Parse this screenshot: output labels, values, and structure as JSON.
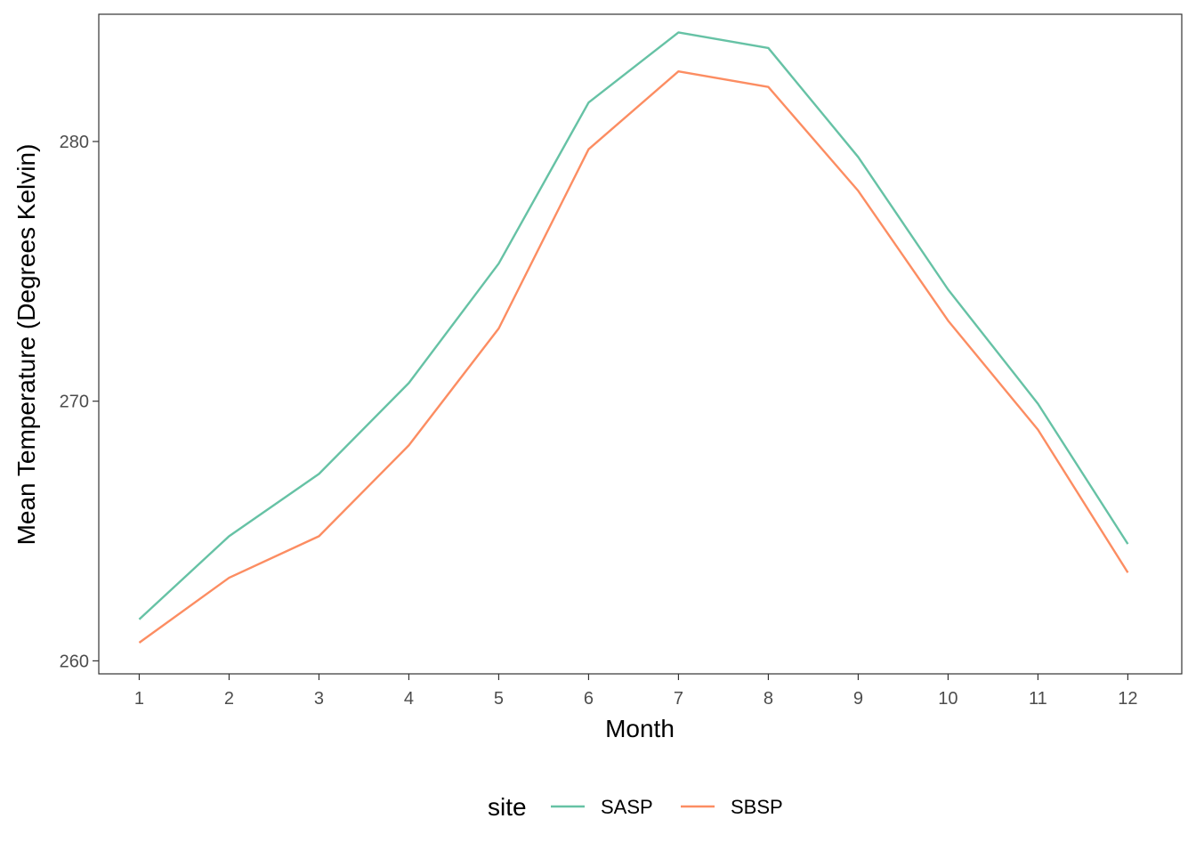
{
  "chart_data": {
    "type": "line",
    "title": "",
    "xlabel": "Month",
    "ylabel": "Mean Temperature (Degrees Kelvin)",
    "x": [
      1,
      2,
      3,
      4,
      5,
      6,
      7,
      8,
      9,
      10,
      11,
      12
    ],
    "x_ticks": [
      "1",
      "2",
      "3",
      "4",
      "5",
      "6",
      "7",
      "8",
      "9",
      "10",
      "11",
      "12"
    ],
    "y_ticks": [
      260,
      270,
      280
    ],
    "xlim": [
      0.55,
      12.6
    ],
    "ylim": [
      259.5,
      284.9
    ],
    "grid": false,
    "legend_title": "site",
    "legend_position": "bottom",
    "series": [
      {
        "name": "SASP",
        "color": "#66c2a5",
        "values": [
          261.6,
          264.8,
          267.2,
          270.7,
          275.3,
          281.5,
          284.2,
          283.6,
          279.4,
          274.3,
          269.9,
          264.5
        ]
      },
      {
        "name": "SBSP",
        "color": "#fc8d62",
        "values": [
          260.7,
          263.2,
          264.8,
          268.3,
          272.8,
          279.7,
          282.7,
          282.1,
          278.1,
          273.1,
          268.9,
          263.4
        ]
      }
    ]
  }
}
